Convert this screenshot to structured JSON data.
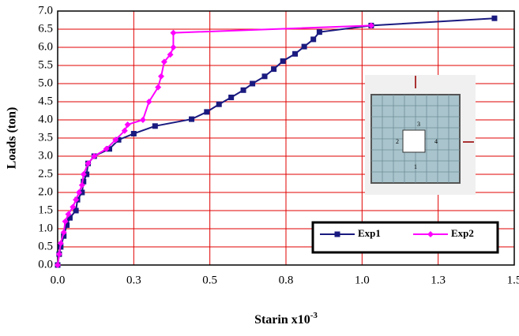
{
  "chart_data": {
    "type": "line",
    "y_label": "Loads (ton)",
    "x_label": "Starin x10",
    "x_label_exponent": "-3",
    "xlim": [
      0,
      1.5
    ],
    "xticks": [
      {
        "value": 0,
        "label": "0.0"
      },
      {
        "value": 0.25,
        "label": "0.3"
      },
      0.5,
      {
        "value": 0.75,
        "label": "0.8"
      },
      {
        "value": 1,
        "label": "1.0"
      },
      {
        "value": 1.25,
        "label": "1.3"
      },
      1.5
    ],
    "ylim": [
      0,
      7
    ],
    "yticks": [
      {
        "value": 0,
        "label": "0.0"
      },
      0.5,
      {
        "value": 1,
        "label": "1.0"
      },
      1.5,
      {
        "value": 2,
        "label": "2.0"
      },
      2.5,
      {
        "value": 3,
        "label": "3.0"
      },
      3.5,
      {
        "value": 4,
        "label": "4.0"
      },
      4.5,
      {
        "value": 5,
        "label": "5.0"
      },
      5.5,
      {
        "value": 6,
        "label": "6.0"
      },
      6.5,
      {
        "value": 7,
        "label": "7.0"
      }
    ],
    "grid": true,
    "grid_color": "#e00000",
    "series": [
      {
        "name": "Exp1",
        "color": "#1a1a80",
        "marker": "square",
        "x": [
          0,
          0.005,
          0.01,
          0.02,
          0.03,
          0.04,
          0.06,
          0.065,
          0.08,
          0.085,
          0.095,
          0.1,
          0.12,
          0.17,
          0.2,
          0.25,
          0.32,
          0.44,
          0.49,
          0.53,
          0.57,
          0.61,
          0.64,
          0.68,
          0.71,
          0.74,
          0.78,
          0.81,
          0.84,
          0.86,
          1.03,
          1.435
        ],
        "values": [
          0,
          0.3,
          0.5,
          0.8,
          1.1,
          1.3,
          1.5,
          1.8,
          2.0,
          2.3,
          2.5,
          2.8,
          3.0,
          3.2,
          3.45,
          3.62,
          3.83,
          4.02,
          4.22,
          4.43,
          4.62,
          4.82,
          5.0,
          5.2,
          5.4,
          5.62,
          5.82,
          6.02,
          6.22,
          6.42,
          6.6,
          6.8
        ]
      },
      {
        "name": "Exp2",
        "color": "#ff00ff",
        "marker": "diamond",
        "x": [
          0,
          0.005,
          0.01,
          0.02,
          0.025,
          0.035,
          0.05,
          0.06,
          0.07,
          0.08,
          0.085,
          0.1,
          0.12,
          0.16,
          0.19,
          0.22,
          0.23,
          0.28,
          0.3,
          0.33,
          0.34,
          0.35,
          0.37,
          0.38,
          0.38,
          1.03
        ],
        "values": [
          0,
          0.3,
          0.6,
          0.9,
          1.2,
          1.4,
          1.6,
          1.8,
          2.0,
          2.2,
          2.5,
          2.8,
          3.0,
          3.2,
          3.45,
          3.7,
          3.87,
          4.0,
          4.5,
          4.9,
          5.2,
          5.6,
          5.8,
          6.0,
          6.4,
          6.6
        ]
      }
    ]
  },
  "inset": {
    "labels": [
      "1",
      "2",
      "3",
      "4"
    ]
  }
}
